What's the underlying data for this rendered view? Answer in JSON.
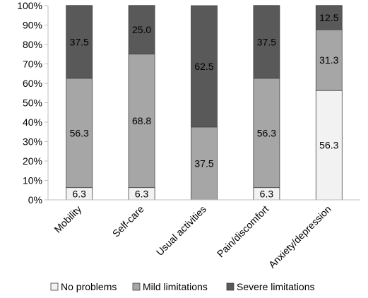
{
  "chart_data": {
    "type": "bar",
    "stacked": true,
    "percent": true,
    "categories": [
      "Mobility",
      "Self-care",
      "Usual activities",
      "Pain/discomfort",
      "Anxiety/depression"
    ],
    "series": [
      {
        "name": "No problems",
        "color": "#f2f2f2",
        "values": [
          6.3,
          6.3,
          0,
          6.3,
          56.3
        ],
        "labels": [
          "6.3",
          "6.3",
          "",
          "6.3",
          "56.3"
        ]
      },
      {
        "name": "Mild limitations",
        "color": "#a6a6a6",
        "values": [
          56.3,
          68.8,
          37.5,
          56.3,
          31.3
        ],
        "labels": [
          "56.3",
          "68.8",
          "37.5",
          "56.3",
          "31.3"
        ]
      },
      {
        "name": "Severe limitations",
        "color": "#595959",
        "values": [
          37.5,
          25.0,
          62.5,
          37.5,
          12.5
        ],
        "labels": [
          "37.5",
          "25.0",
          "62.5",
          "37.5",
          "12.5"
        ]
      }
    ],
    "yticks": [
      "0%",
      "10%",
      "20%",
      "30%",
      "40%",
      "50%",
      "60%",
      "70%",
      "80%",
      "90%",
      "100%"
    ],
    "ylim": [
      0,
      100
    ],
    "grid": false,
    "legend_position": "bottom"
  }
}
